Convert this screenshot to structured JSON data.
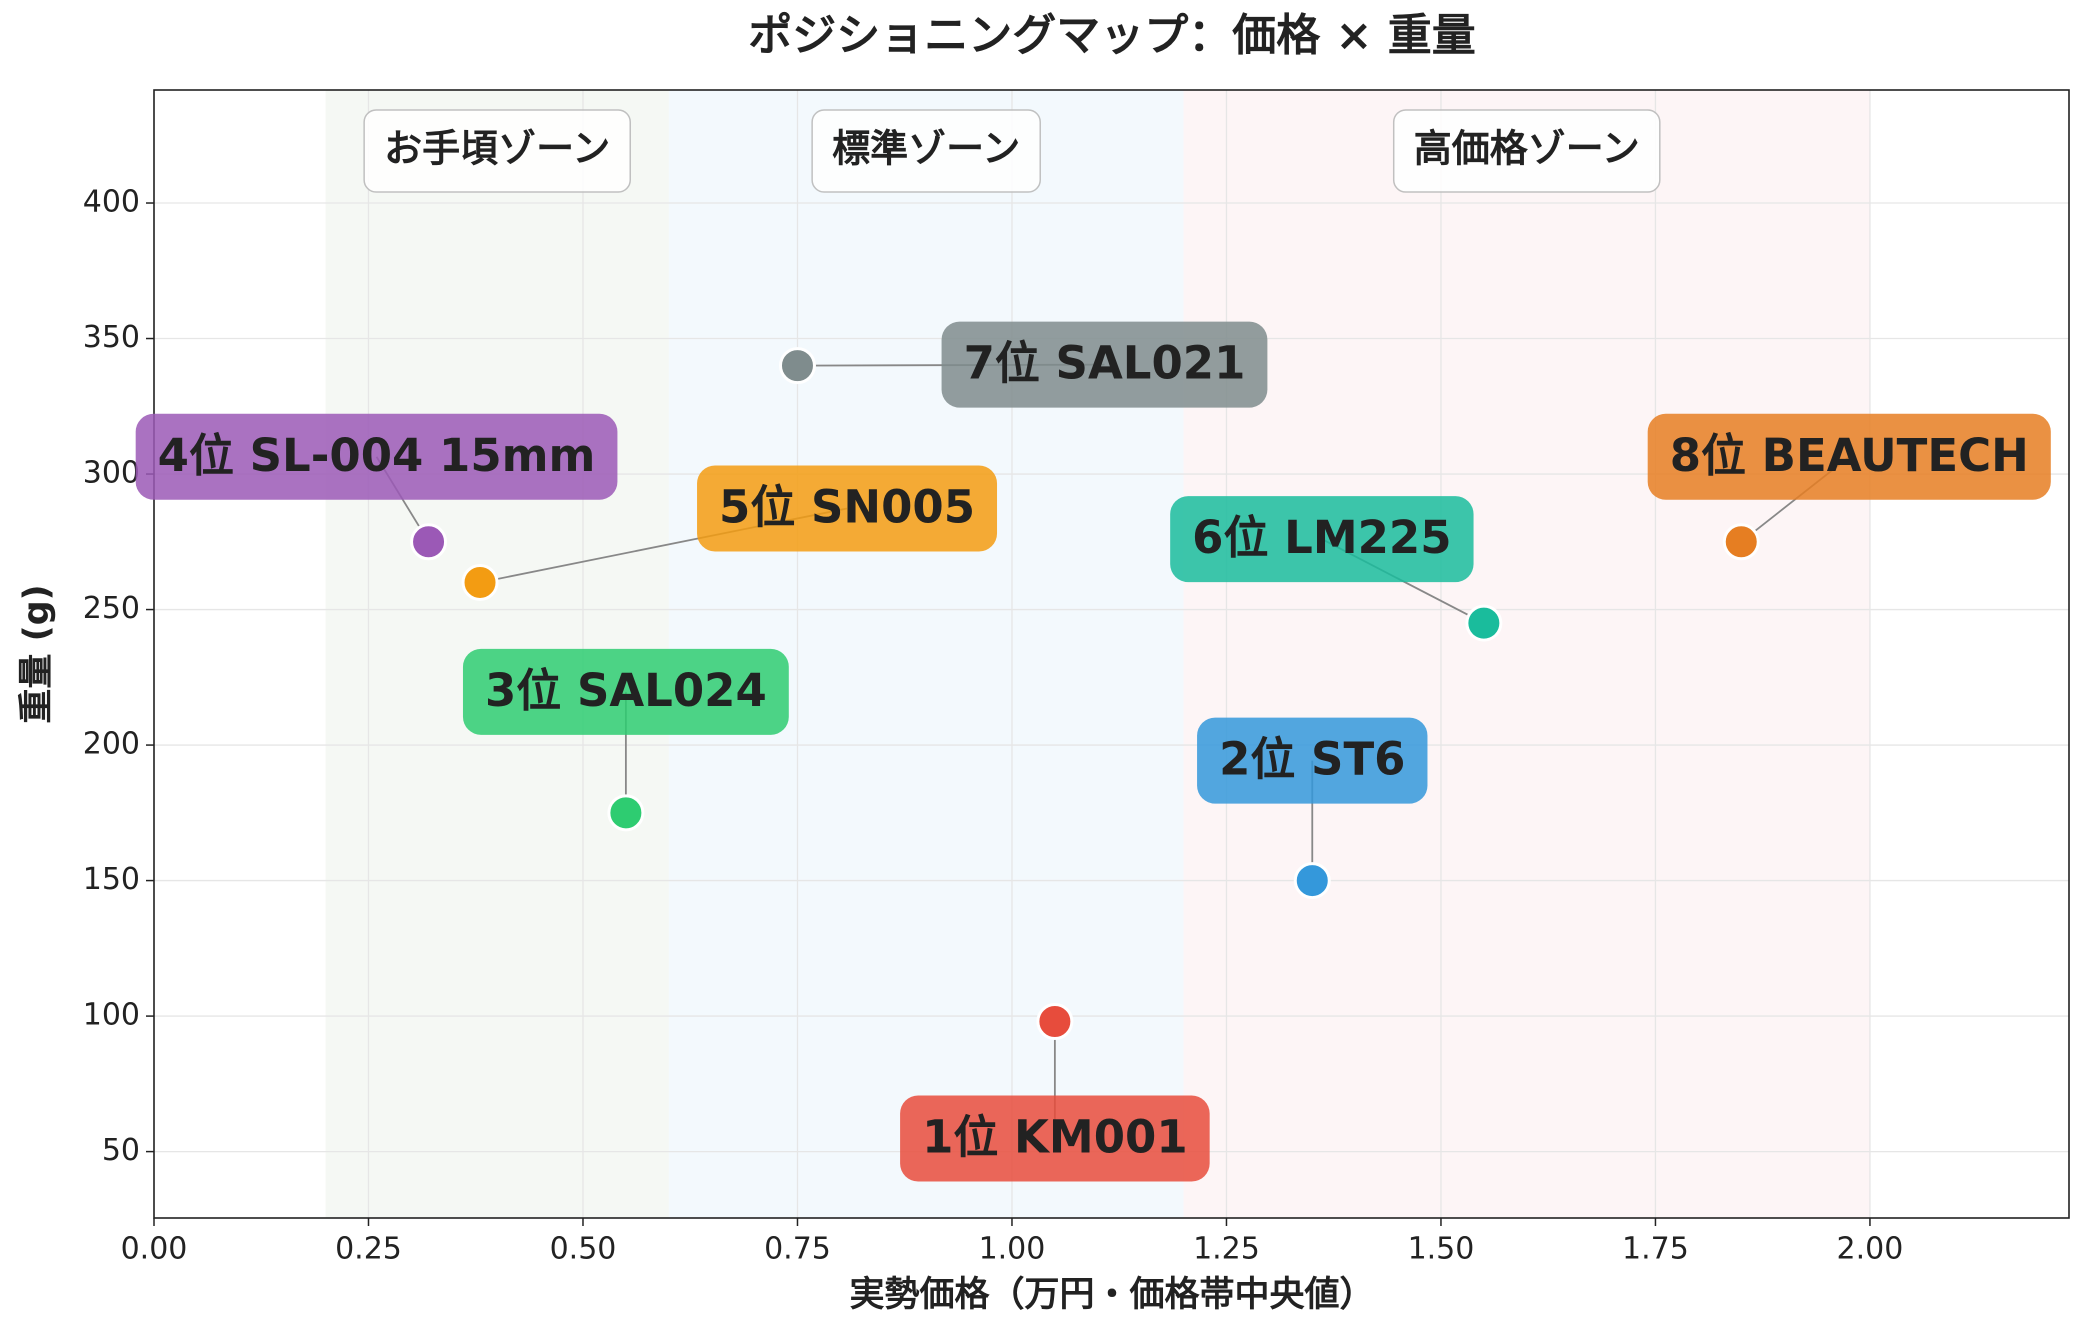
{
  "chart_data": {
    "type": "scatter",
    "title": "ポジショニングマップ：価格 × 重量",
    "x_label": "実勢価格（万円・価格帯中央値）",
    "y_label": "重量 (g)",
    "xlim": [
      0,
      2.232
    ],
    "ylim": [
      25.5,
      441.7
    ],
    "xticks": [
      {
        "value": 0,
        "label": "0.00"
      },
      {
        "value": 0.25,
        "label": "0.25"
      },
      {
        "value": 0.5,
        "label": "0.50"
      },
      {
        "value": 0.75,
        "label": "0.75"
      },
      {
        "value": 1,
        "label": "1.00"
      },
      {
        "value": 1.25,
        "label": "1.25"
      },
      {
        "value": 1.5,
        "label": "1.50"
      },
      {
        "value": 1.75,
        "label": "1.75"
      },
      {
        "value": 2,
        "label": "2.00"
      }
    ],
    "yticks": [
      50,
      100,
      150,
      200,
      250,
      300,
      350,
      400
    ],
    "grid": true,
    "zones": [
      {
        "name": "お手頃ゾーン",
        "range": [
          0.2,
          0.6
        ],
        "color": "#e8efe6"
      },
      {
        "name": "標準ゾーン",
        "range": [
          0.6,
          1.2
        ],
        "color": "#e4f1fa"
      },
      {
        "name": "高価格ゾーン",
        "range": [
          1.2,
          2.0
        ],
        "color": "#fbe9ea"
      }
    ],
    "points": [
      {
        "label": "1位 KM001",
        "x": 1.05,
        "y": 98,
        "color": "#e74c3c"
      },
      {
        "label": "2位 ST6",
        "x": 1.35,
        "y": 150,
        "color": "#3498db"
      },
      {
        "label": "3位 SAL024",
        "x": 0.55,
        "y": 175,
        "color": "#2ecc71"
      },
      {
        "label": "4位 SL-004 15mm",
        "x": 0.32,
        "y": 275,
        "color": "#9b59b6"
      },
      {
        "label": "5位 SN005",
        "x": 0.38,
        "y": 260,
        "color": "#f39c12"
      },
      {
        "label": "6位 LM225",
        "x": 1.55,
        "y": 245,
        "color": "#1abc9c"
      },
      {
        "label": "7位 SAL021",
        "x": 0.75,
        "y": 340,
        "color": "#7f8c8d"
      },
      {
        "label": "8位 BEAUTECH",
        "x": 1.85,
        "y": 275,
        "color": "#e67e22"
      }
    ]
  }
}
